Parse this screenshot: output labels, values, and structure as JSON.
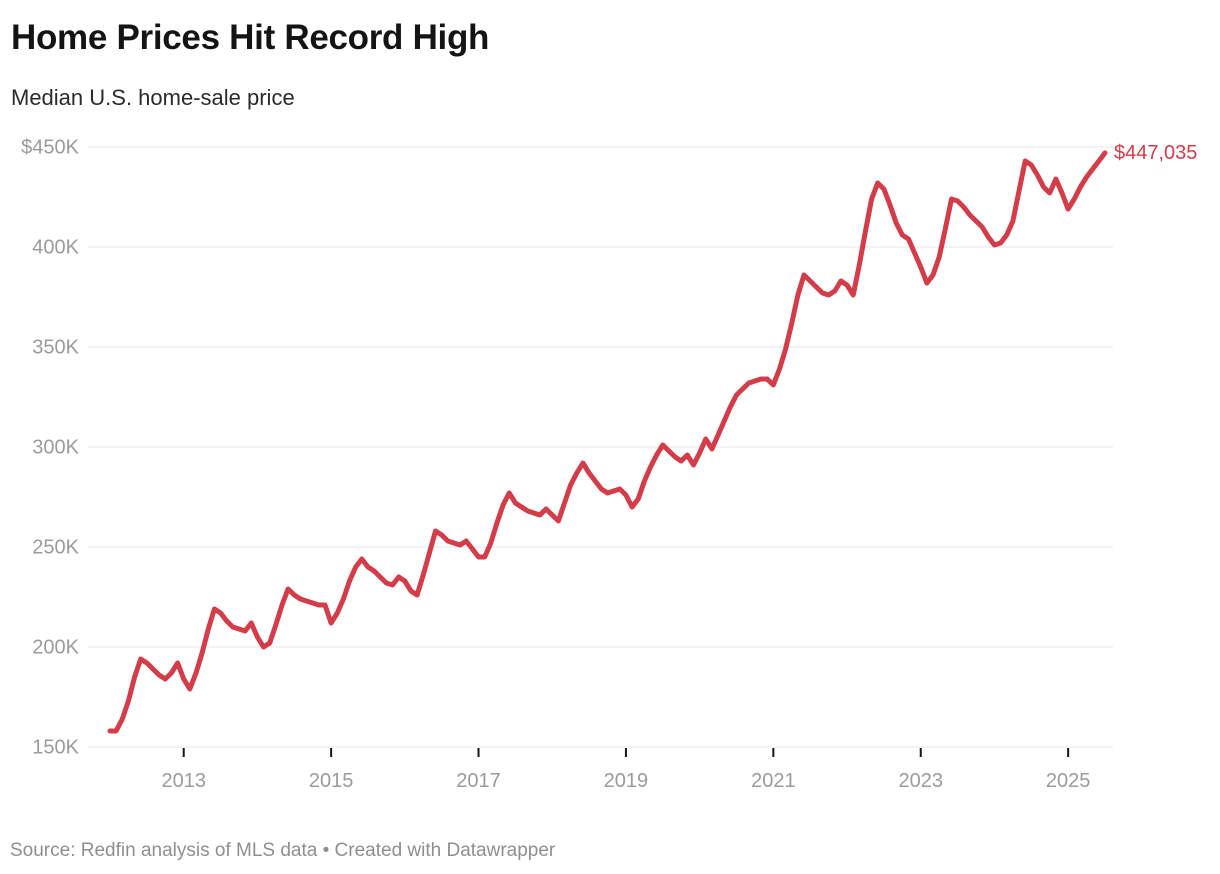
{
  "header": {
    "title": "Home Prices Hit Record High",
    "subtitle": "Median U.S. home-sale price"
  },
  "footer": {
    "source": "Source: Redfin analysis of MLS data • Created with Datawrapper"
  },
  "colors": {
    "line": "#d33c49",
    "grid": "#e4e4e4",
    "axis_label": "#9b9b9b",
    "tick": "#161616"
  },
  "chart_data": {
    "type": "line",
    "title": "Home Prices Hit Record High",
    "subtitle": "Median U.S. home-sale price",
    "unit": "USD",
    "frequency": "monthly",
    "x_start": "2012-01",
    "x_end": "2025-07",
    "ylim": [
      150000,
      450000
    ],
    "grid": true,
    "legend": "none",
    "end_label": "$447,035",
    "last_value": 447035,
    "y_ticks": [
      {
        "label": "$450K",
        "value": 450000
      },
      {
        "label": "400K",
        "value": 400000
      },
      {
        "label": "350K",
        "value": 350000
      },
      {
        "label": "300K",
        "value": 300000
      },
      {
        "label": "250K",
        "value": 250000
      },
      {
        "label": "200K",
        "value": 200000
      },
      {
        "label": "150K",
        "value": 150000
      }
    ],
    "x_ticks": [
      {
        "label": "2013",
        "month_index": 12
      },
      {
        "label": "2015",
        "month_index": 36
      },
      {
        "label": "2017",
        "month_index": 60
      },
      {
        "label": "2019",
        "month_index": 84
      },
      {
        "label": "2021",
        "month_index": 108
      },
      {
        "label": "2023",
        "month_index": 132
      },
      {
        "label": "2025",
        "month_index": 156
      }
    ],
    "series": [
      {
        "name": "Median U.S. home-sale price",
        "values": [
          158000,
          158000,
          164000,
          173000,
          185000,
          194000,
          192000,
          189000,
          186000,
          184000,
          187000,
          192000,
          184000,
          179000,
          187000,
          197000,
          209000,
          219000,
          217000,
          213000,
          210000,
          209000,
          208000,
          212000,
          205000,
          200000,
          202000,
          211000,
          221000,
          229000,
          226000,
          224000,
          223000,
          222000,
          221000,
          221000,
          212000,
          217000,
          224000,
          233000,
          240000,
          244000,
          240000,
          238000,
          235000,
          232000,
          231000,
          235000,
          233000,
          228000,
          226000,
          236000,
          247000,
          258000,
          256000,
          253000,
          252000,
          251000,
          253000,
          249000,
          245000,
          245000,
          252000,
          262000,
          271000,
          277000,
          272000,
          270000,
          268000,
          267000,
          266000,
          269000,
          266000,
          263000,
          272000,
          281000,
          287000,
          292000,
          287000,
          283000,
          279000,
          277000,
          278000,
          279000,
          276000,
          270000,
          274000,
          283000,
          290000,
          296000,
          301000,
          298000,
          295000,
          293000,
          296000,
          291000,
          297000,
          304000,
          299000,
          306000,
          313000,
          320000,
          326000,
          329000,
          332000,
          333000,
          334000,
          334000,
          331000,
          339000,
          349000,
          362000,
          376000,
          386000,
          383000,
          380000,
          377000,
          376000,
          378000,
          383000,
          381000,
          376000,
          391000,
          408000,
          424000,
          432000,
          429000,
          421000,
          412000,
          406000,
          404000,
          397000,
          390000,
          382000,
          386000,
          395000,
          409000,
          424000,
          423000,
          420000,
          416000,
          413000,
          410000,
          405000,
          401000,
          402000,
          406000,
          413000,
          428000,
          443000,
          441000,
          436000,
          430000,
          427000,
          434000,
          427000,
          419000,
          424000,
          430000,
          435000,
          439000,
          443000,
          447035
        ]
      }
    ]
  }
}
